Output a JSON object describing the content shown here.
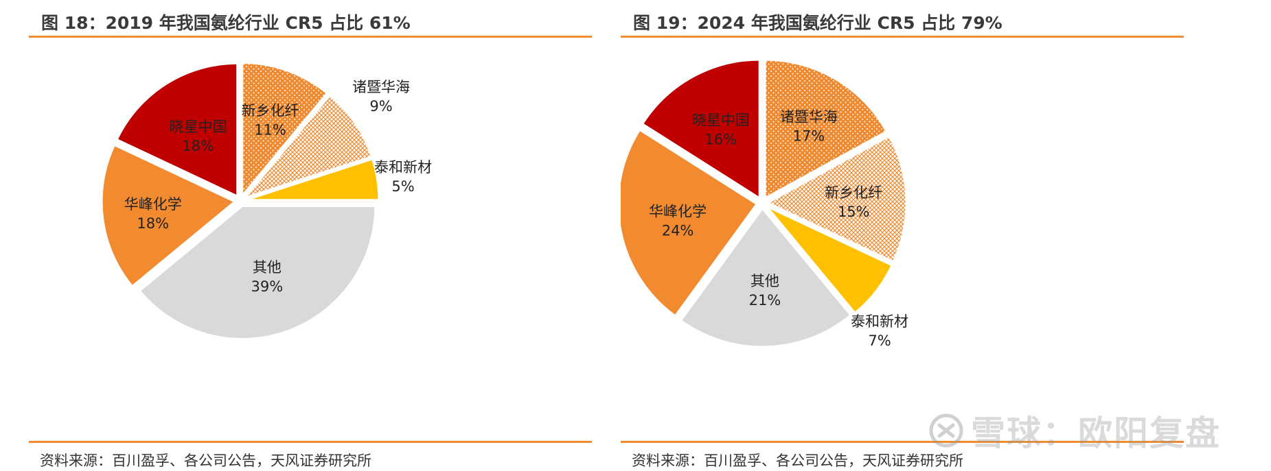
{
  "chart_data": [
    {
      "type": "pie",
      "title": "图 18：2019 年我国氨纶行业 CR5 占比 61%",
      "source": "资料来源：百川盈孚、各公司公告，天风证券研究所",
      "slices": [
        {
          "label": "新乡化纤",
          "value": 11,
          "pct_label": "11%",
          "color": "#f08a30",
          "pattern": "dots"
        },
        {
          "label": "诸暨华海",
          "value": 9,
          "pct_label": "9%",
          "color": "#f08a30",
          "pattern": "cross"
        },
        {
          "label": "泰和新材",
          "value": 5,
          "pct_label": "5%",
          "color": "#ffc000",
          "pattern": "none"
        },
        {
          "label": "其他",
          "value": 39,
          "pct_label": "39%",
          "color": "#d9d9d9",
          "pattern": "none"
        },
        {
          "label": "华峰化学",
          "value": 18,
          "pct_label": "18%",
          "color": "#f28a30",
          "pattern": "none"
        },
        {
          "label": "晓星中国",
          "value": 18,
          "pct_label": "18%",
          "color": "#c00000",
          "pattern": "none"
        }
      ]
    },
    {
      "type": "pie",
      "title": "图 19：2024 年我国氨纶行业 CR5 占比 79%",
      "source": "资料来源：百川盈孚、各公司公告，天风证券研究所",
      "slices": [
        {
          "label": "诸暨华海",
          "value": 17,
          "pct_label": "17%",
          "color": "#f08a30",
          "pattern": "dots"
        },
        {
          "label": "新乡化纤",
          "value": 15,
          "pct_label": "15%",
          "color": "#f08a30",
          "pattern": "cross"
        },
        {
          "label": "泰和新材",
          "value": 7,
          "pct_label": "7%",
          "color": "#ffc000",
          "pattern": "none"
        },
        {
          "label": "其他",
          "value": 21,
          "pct_label": "21%",
          "color": "#d9d9d9",
          "pattern": "none"
        },
        {
          "label": "华峰化学",
          "value": 24,
          "pct_label": "24%",
          "color": "#f28a30",
          "pattern": "none"
        },
        {
          "label": "晓星中国",
          "value": 16,
          "pct_label": "16%",
          "color": "#c00000",
          "pattern": "none"
        }
      ]
    }
  ],
  "watermark": {
    "text": "雪球：欧阳复盘"
  }
}
